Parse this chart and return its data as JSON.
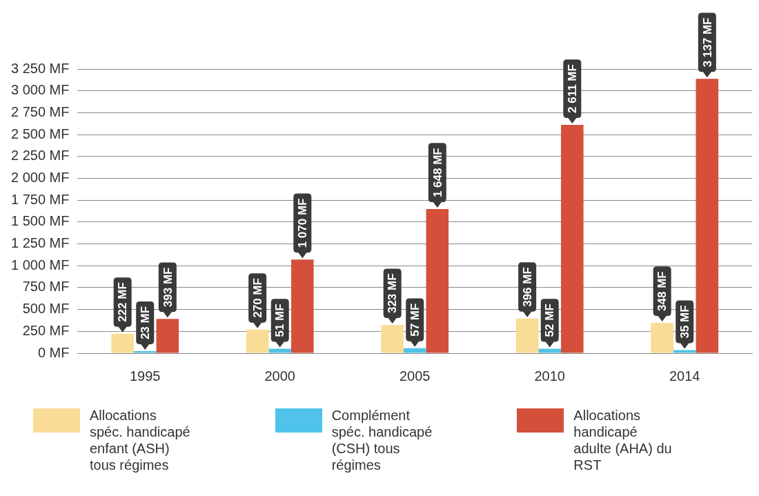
{
  "chart_data": {
    "type": "bar",
    "categories": [
      "1995",
      "2000",
      "2005",
      "2010",
      "2014"
    ],
    "series": [
      {
        "name": "Allocations spéc. handicapé enfant (ASH) tous régimes",
        "color": "#f9dc95",
        "values": [
          222,
          270,
          323,
          396,
          348
        ],
        "value_labels": [
          "222 MF",
          "270 MF",
          "323 MF",
          "396 MF",
          "348 MF"
        ]
      },
      {
        "name": "Complément spéc. handicapé (CSH) tous régimes",
        "color": "#4fc3ea",
        "values": [
          23,
          51,
          57,
          52,
          35
        ],
        "value_labels": [
          "23 MF",
          "51 MF",
          "57 MF",
          "52 MF",
          "35 MF"
        ]
      },
      {
        "name": "Allocations handicapé adulte (AHA) du RST",
        "color": "#d4503b",
        "values": [
          393,
          1070,
          1648,
          2611,
          3137
        ],
        "value_labels": [
          "393 MF",
          "1 070 MF",
          "1 648 MF",
          "2 611 MF",
          "3 137 MF"
        ]
      }
    ],
    "ylim": [
      0,
      3250
    ],
    "yticks": [
      {
        "value": 0,
        "label": "0 MF"
      },
      {
        "value": 250,
        "label": "250 MF"
      },
      {
        "value": 500,
        "label": "500 MF"
      },
      {
        "value": 750,
        "label": "750 MF"
      },
      {
        "value": 1000,
        "label": "1 000 MF"
      },
      {
        "value": 1250,
        "label": "1 250 MF"
      },
      {
        "value": 1500,
        "label": "1 500 MF"
      },
      {
        "value": 1750,
        "label": "1 750 MF"
      },
      {
        "value": 2000,
        "label": "2 000 MF"
      },
      {
        "value": 2250,
        "label": "2 250 MF"
      },
      {
        "value": 2500,
        "label": "2 500 MF"
      },
      {
        "value": 2750,
        "label": "2 750 MF"
      },
      {
        "value": 3000,
        "label": "3 000 MF"
      },
      {
        "value": 3250,
        "label": "3 250 MF"
      }
    ],
    "grid": "y",
    "legend": "bottom"
  }
}
